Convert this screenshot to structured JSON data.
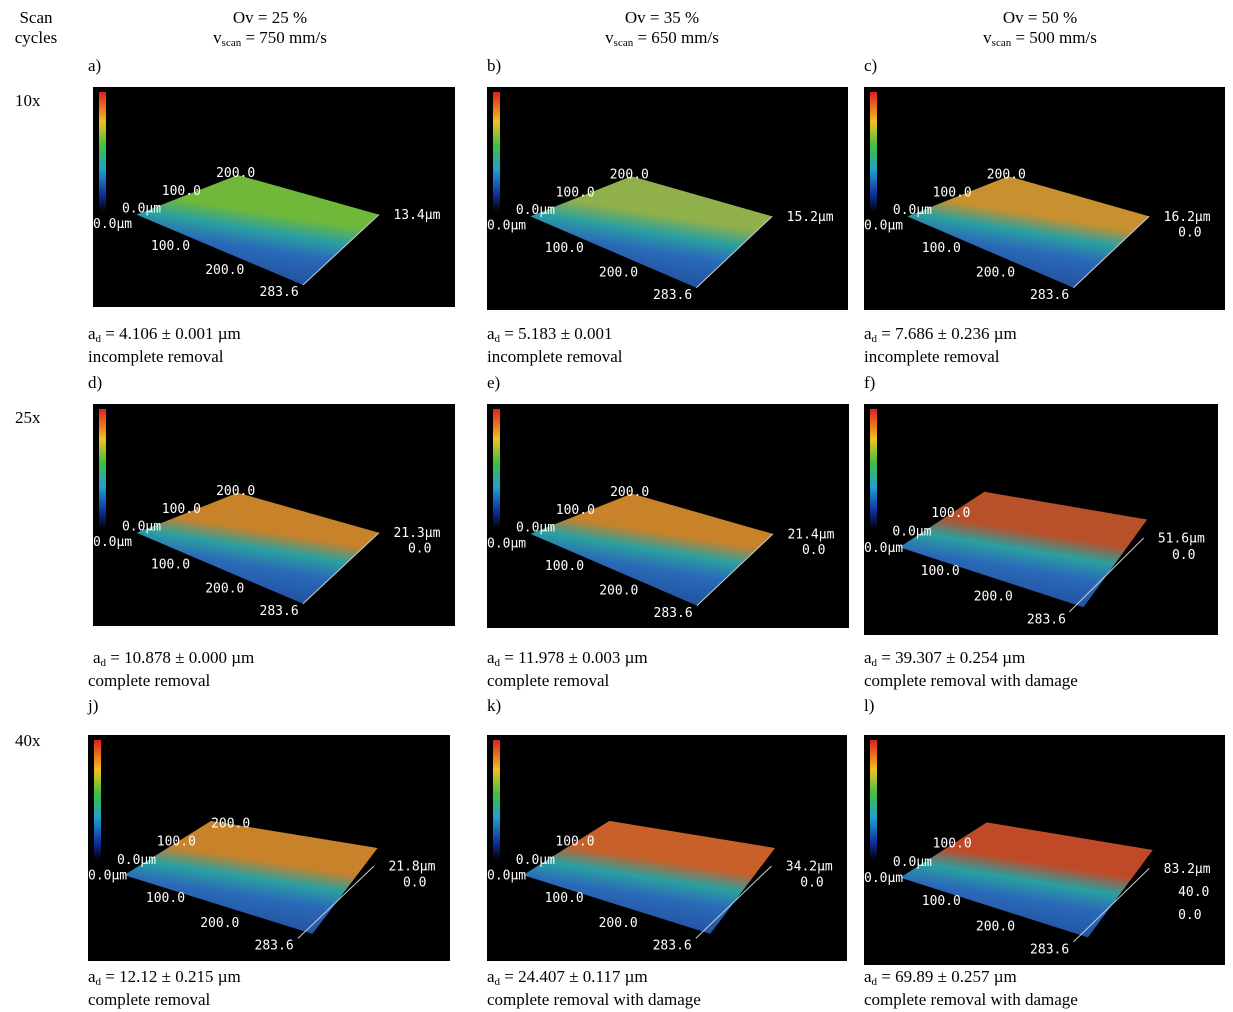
{
  "row_header": {
    "line1": "Scan",
    "line2": "cycles"
  },
  "columns": [
    {
      "overlap": "Ov = 25 %",
      "speed_symbol": "v",
      "speed_sub": "scan",
      "speed_value": " = 750 mm/s"
    },
    {
      "overlap": "Ov = 35 %",
      "speed_symbol": "v",
      "speed_sub": "scan",
      "speed_value": " = 650 mm/s"
    },
    {
      "overlap": "Ov = 50 %",
      "speed_symbol": "v",
      "speed_sub": "scan",
      "speed_value": " = 500 mm/s"
    }
  ],
  "rows": [
    {
      "cycles": "10x",
      "panels": [
        {
          "letter": "a)",
          "depth_symbol": "a",
          "depth_sub": "d",
          "depth_value": " = 4.106 ± 0.001 µm",
          "result": "incomplete removal",
          "image_labels": {
            "back_200": "200.0",
            "back_100": "100.0",
            "origin_top": "0.0µm",
            "origin_left": "0.0µm",
            "x_100": "100.0",
            "x_200": "200.0",
            "x_end": "283.6",
            "z_max": "13.4µm"
          }
        },
        {
          "letter": "b)",
          "depth_symbol": "a",
          "depth_sub": "d",
          "depth_value": " = 5.183 ± 0.001",
          "result": "incomplete removal",
          "image_labels": {
            "back_200": "200.0",
            "back_100": "100.0",
            "origin_top": "0.0µm",
            "origin_left": "0.0µm",
            "x_100": "100.0",
            "x_200": "200.0",
            "x_end": "283.6",
            "z_max": "15.2µm"
          }
        },
        {
          "letter": "c)",
          "depth_symbol": "a",
          "depth_sub": "d",
          "depth_value": " = 7.686 ± 0.236 µm",
          "result": "incomplete removal",
          "image_labels": {
            "back_200": "200.0",
            "back_100": "100.0",
            "origin_top": "0.0µm",
            "origin_left": "0.0µm",
            "x_100": "100.0",
            "x_200": "200.0",
            "x_end": "283.6",
            "z_max": "16.2µm",
            "z_zero": "0.0"
          }
        }
      ]
    },
    {
      "cycles": "25x",
      "panels": [
        {
          "letter": "d)",
          "depth_symbol": "a",
          "depth_sub": "d",
          "depth_value": " = 10.878 ± 0.000 µm",
          "result": "complete removal",
          "image_labels": {
            "back_200": "200.0",
            "back_100": "100.0",
            "origin_top": "0.0µm",
            "origin_left": "0.0µm",
            "x_100": "100.0",
            "x_200": "200.0",
            "x_end": "283.6",
            "z_max": "21.3µm",
            "z_zero": "0.0"
          }
        },
        {
          "letter": "e)",
          "depth_symbol": "a",
          "depth_sub": "d",
          "depth_value": " = 11.978 ± 0.003 µm",
          "result": "complete removal",
          "image_labels": {
            "back_200": "200.0",
            "back_100": "100.0",
            "origin_top": "0.0µm",
            "origin_left": "0.0µm",
            "x_100": "100.0",
            "x_200": "200.0",
            "x_end": "283.6",
            "z_max": "21.4µm",
            "z_zero": "0.0"
          }
        },
        {
          "letter": "f)",
          "depth_symbol": "a",
          "depth_sub": "d",
          "depth_value": " = 39.307 ± 0.254 µm",
          "result": "complete removal with damage",
          "image_labels": {
            "back_100": "100.0",
            "origin_top": "0.0µm",
            "origin_left": "0.0µm",
            "x_100": "100.0",
            "x_200": "200.0",
            "x_end": "283.6",
            "z_max": "51.6µm",
            "z_zero": "0.0"
          }
        }
      ]
    },
    {
      "cycles": "40x",
      "panels": [
        {
          "letter": "j)",
          "depth_symbol": "a",
          "depth_sub": "d",
          "depth_value": " = 12.12 ± 0.215 µm",
          "result": "complete removal",
          "image_labels": {
            "back_200": "200.0",
            "back_100": "100.0",
            "origin_top": "0.0µm",
            "origin_left": "0.0µm",
            "x_100": "100.0",
            "x_200": "200.0",
            "x_end": "283.6",
            "z_max": "21.8µm",
            "z_zero": "0.0"
          }
        },
        {
          "letter": "k)",
          "depth_symbol": "a",
          "depth_sub": "d",
          "depth_value": " = 24.407 ± 0.117 µm",
          "result": "complete removal with damage",
          "image_labels": {
            "back_100": "100.0",
            "origin_top": "0.0µm",
            "origin_left": "0.0µm",
            "x_100": "100.0",
            "x_200": "200.0",
            "x_end": "283.6",
            "z_max": "34.2µm",
            "z_zero": "0.0"
          }
        },
        {
          "letter": "l)",
          "depth_symbol": "a",
          "depth_sub": "d",
          "depth_value": " = 69.89 ± 0.257 µm",
          "result": "complete removal with damage",
          "image_labels": {
            "back_100": "100.0",
            "origin_top": "0.0µm",
            "origin_left": "0.0µm",
            "x_100": "100.0",
            "x_200": "200.0",
            "x_end": "283.6",
            "z_max": "83.2µm",
            "z_mid": "40.0",
            "z_zero": "0.0"
          }
        }
      ]
    }
  ]
}
